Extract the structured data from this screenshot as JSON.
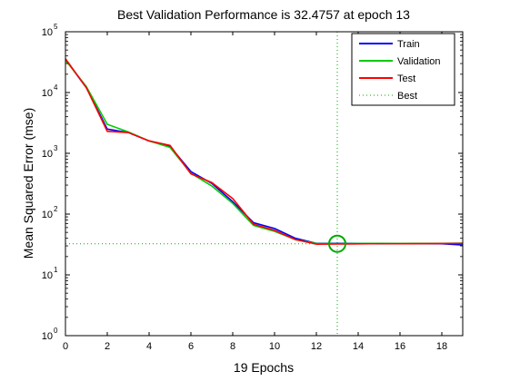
{
  "chart_data": {
    "type": "line",
    "title": "Best Validation Performance is 32.4757 at epoch 13",
    "xlabel": "19 Epochs",
    "ylabel": "Mean Squared Error  (mse)",
    "xlim": [
      0,
      19
    ],
    "ylim": [
      1,
      100000
    ],
    "yscale": "log",
    "xticks": [
      "0",
      "2",
      "4",
      "6",
      "8",
      "10",
      "12",
      "14",
      "16",
      "18"
    ],
    "xtick_values": [
      0,
      2,
      4,
      6,
      8,
      10,
      12,
      14,
      16,
      18
    ],
    "yticks": [
      {
        "base": "10",
        "exp": "0",
        "value": 1
      },
      {
        "base": "10",
        "exp": "1",
        "value": 10
      },
      {
        "base": "10",
        "exp": "2",
        "value": 100
      },
      {
        "base": "10",
        "exp": "3",
        "value": 1000
      },
      {
        "base": "10",
        "exp": "4",
        "value": 10000
      },
      {
        "base": "10",
        "exp": "5",
        "value": 100000
      }
    ],
    "x": [
      0,
      1,
      2,
      3,
      4,
      5,
      6,
      7,
      8,
      9,
      10,
      11,
      12,
      13,
      14,
      15,
      16,
      17,
      18,
      19
    ],
    "series": [
      {
        "name": "Train",
        "color": "#0000ff",
        "style": "solid",
        "values": [
          35000,
          12000,
          2500,
          2200,
          1600,
          1300,
          500,
          320,
          160,
          72,
          58,
          40,
          33,
          33,
          32.8,
          32.5,
          32.6,
          32.6,
          32.5,
          31
        ]
      },
      {
        "name": "Validation",
        "color": "#00cc00",
        "style": "solid",
        "values": [
          34000,
          12500,
          3000,
          2250,
          1600,
          1250,
          470,
          290,
          150,
          65,
          52,
          38,
          32.8,
          32.4757,
          32.8,
          32.9,
          32.8,
          32.9,
          33.0,
          33.2
        ]
      },
      {
        "name": "Test",
        "color": "#ff0000",
        "style": "solid",
        "values": [
          36000,
          12000,
          2300,
          2200,
          1600,
          1350,
          460,
          330,
          180,
          68,
          54,
          38,
          32,
          32.2,
          32.4,
          32.6,
          32.5,
          32.7,
          32.8,
          33.0
        ]
      }
    ],
    "best": {
      "name": "Best",
      "color": "#00aa00",
      "style": "dotted",
      "epoch": 13,
      "value": 32.4757
    },
    "legend_position": "top-right",
    "grid": false
  }
}
